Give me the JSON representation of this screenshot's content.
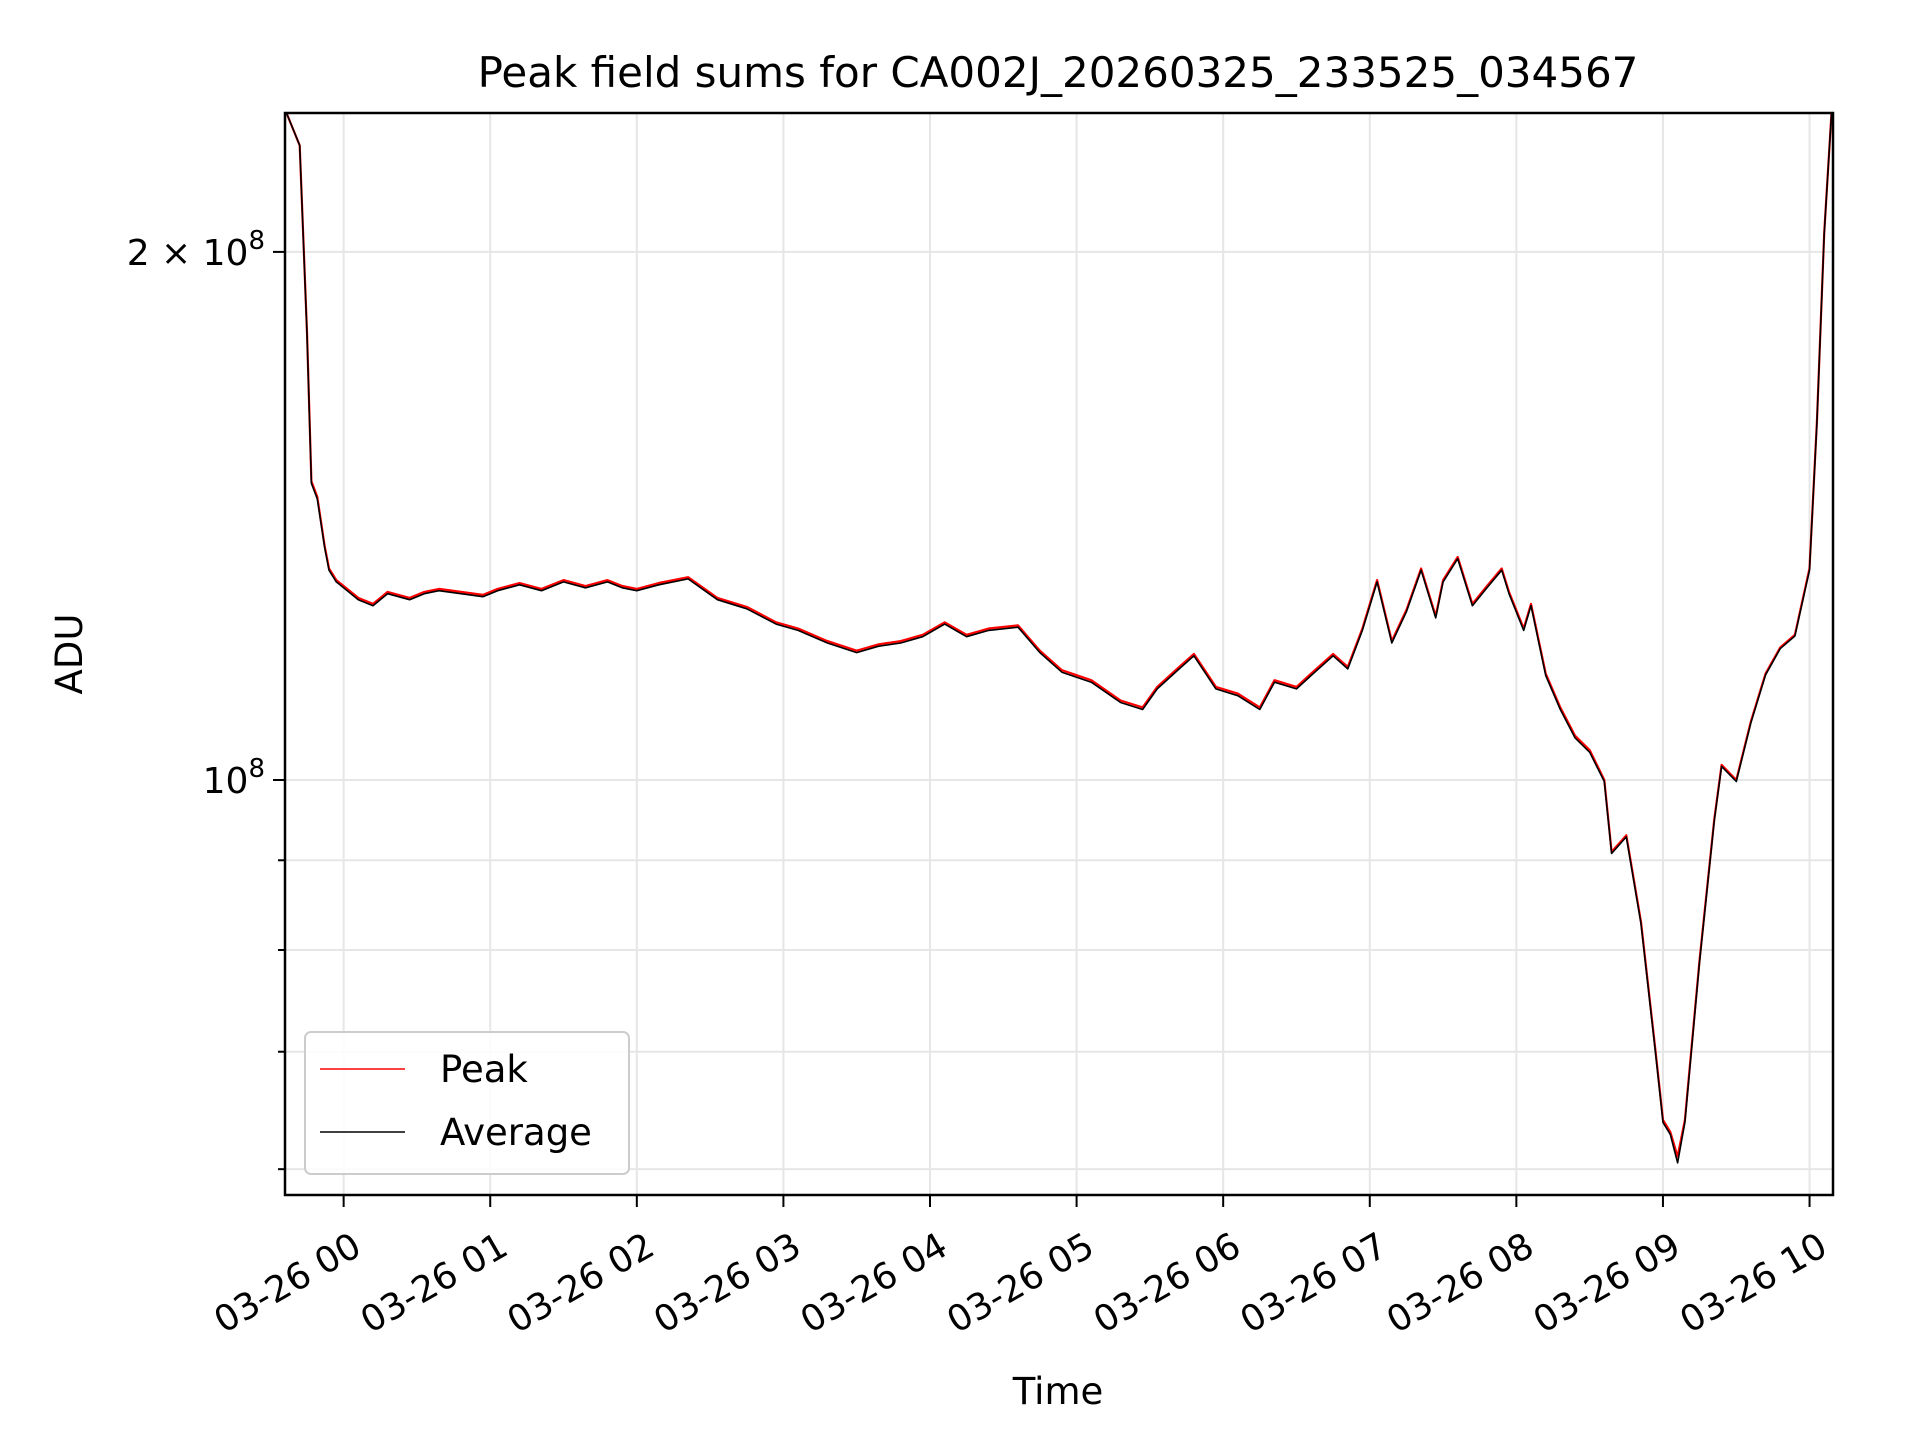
{
  "chart_data": {
    "type": "line",
    "title": "Peak field sums for CA002J_20260325_233525_034567",
    "xlabel": "Time",
    "ylabel": "ADU",
    "y_scale": "log",
    "grid": true,
    "legend_position": "lower-left",
    "x_tick_labels": [
      "03-26 00",
      "03-26 01",
      "03-26 02",
      "03-26 03",
      "03-26 04",
      "03-26 05",
      "03-26 06",
      "03-26 07",
      "03-26 08",
      "03-26 09",
      "03-26 10"
    ],
    "x_ticks_hours": [
      0,
      1,
      2,
      3,
      4,
      5,
      6,
      7,
      8,
      9,
      10
    ],
    "x_range_hours": [
      -0.4,
      10.16
    ],
    "y_range": [
      58000000,
      240000000
    ],
    "y_major_ticks": [
      {
        "value": 100000000,
        "mantissa": "",
        "base": "10",
        "exp": "8"
      },
      {
        "value": 200000000,
        "mantissa": "2 × ",
        "base": "10",
        "exp": "8"
      }
    ],
    "y_minor_ticks": [
      60000000,
      70000000,
      80000000,
      90000000
    ],
    "series": [
      {
        "name": "Peak",
        "color": "#ff0000",
        "x": [
          -0.39,
          -0.3,
          -0.25,
          -0.22,
          -0.18,
          -0.13,
          -0.1,
          -0.05,
          0.0,
          0.1,
          0.2,
          0.3,
          0.45,
          0.55,
          0.65,
          0.8,
          0.95,
          1.05,
          1.2,
          1.35,
          1.5,
          1.65,
          1.8,
          1.9,
          2.0,
          2.15,
          2.35,
          2.55,
          2.75,
          2.95,
          3.1,
          3.3,
          3.5,
          3.65,
          3.8,
          3.95,
          4.1,
          4.25,
          4.4,
          4.6,
          4.75,
          4.9,
          5.1,
          5.3,
          5.45,
          5.55,
          5.7,
          5.8,
          5.95,
          6.1,
          6.25,
          6.35,
          6.5,
          6.6,
          6.75,
          6.85,
          6.95,
          7.05,
          7.15,
          7.25,
          7.35,
          7.45,
          7.5,
          7.6,
          7.7,
          7.8,
          7.9,
          7.95,
          8.05,
          8.1,
          8.2,
          8.3,
          8.4,
          8.5,
          8.6,
          8.65,
          8.75,
          8.85,
          8.95,
          9.0,
          9.05,
          9.1,
          9.15,
          9.25,
          9.35,
          9.4,
          9.5,
          9.6,
          9.7,
          9.8,
          9.9,
          10.0,
          10.05,
          10.1,
          10.15
        ],
        "values": [
          240000000,
          230000000,
          180000000,
          148000000,
          145000000,
          136000000,
          132000000,
          130000000,
          129000000,
          127000000,
          126000000,
          128000000,
          127000000,
          128000000,
          128500000,
          128000000,
          127500000,
          128500000,
          129500000,
          128500000,
          130000000,
          129000000,
          130000000,
          129000000,
          128500000,
          129500000,
          130500000,
          127000000,
          125500000,
          123000000,
          122000000,
          120000000,
          118500000,
          119500000,
          120000000,
          121000000,
          123000000,
          121000000,
          122000000,
          122500000,
          118500000,
          115500000,
          114000000,
          111000000,
          110000000,
          113000000,
          116000000,
          118000000,
          113000000,
          112000000,
          110000000,
          114000000,
          113000000,
          115000000,
          118000000,
          116000000,
          122000000,
          130000000,
          120000000,
          125000000,
          132000000,
          124000000,
          130000000,
          134000000,
          126000000,
          129000000,
          132000000,
          128000000,
          122000000,
          126000000,
          115000000,
          110000000,
          106000000,
          104000000,
          100000000,
          91000000,
          93000000,
          83000000,
          70000000,
          64000000,
          63000000,
          61000000,
          64000000,
          79000000,
          95000000,
          102000000,
          100000000,
          108000000,
          115000000,
          119000000,
          121000000,
          132000000,
          160000000,
          205000000,
          240000000
        ]
      },
      {
        "name": "Average",
        "color": "#000000",
        "x": [
          -0.39,
          -0.3,
          -0.25,
          -0.22,
          -0.18,
          -0.13,
          -0.1,
          -0.05,
          0.0,
          0.1,
          0.2,
          0.3,
          0.45,
          0.55,
          0.65,
          0.8,
          0.95,
          1.05,
          1.2,
          1.35,
          1.5,
          1.65,
          1.8,
          1.9,
          2.0,
          2.15,
          2.35,
          2.55,
          2.75,
          2.95,
          3.1,
          3.3,
          3.5,
          3.65,
          3.8,
          3.95,
          4.1,
          4.25,
          4.4,
          4.6,
          4.75,
          4.9,
          5.1,
          5.3,
          5.45,
          5.55,
          5.7,
          5.8,
          5.95,
          6.1,
          6.25,
          6.35,
          6.5,
          6.6,
          6.75,
          6.85,
          6.95,
          7.05,
          7.15,
          7.25,
          7.35,
          7.45,
          7.5,
          7.6,
          7.7,
          7.8,
          7.9,
          7.95,
          8.05,
          8.1,
          8.2,
          8.3,
          8.4,
          8.5,
          8.6,
          8.65,
          8.75,
          8.85,
          8.95,
          9.0,
          9.05,
          9.1,
          9.15,
          9.25,
          9.35,
          9.4,
          9.5,
          9.6,
          9.7,
          9.8,
          9.9,
          10.0,
          10.05,
          10.1,
          10.15
        ],
        "values": [
          240000000,
          230000000,
          179500000,
          147600000,
          144600000,
          135700000,
          131700000,
          129700000,
          128700000,
          126700000,
          125700000,
          127700000,
          126700000,
          127700000,
          128200000,
          127700000,
          127200000,
          128200000,
          129200000,
          128200000,
          129700000,
          128700000,
          129700000,
          128700000,
          128200000,
          129200000,
          130200000,
          126700000,
          125200000,
          122700000,
          121700000,
          119700000,
          118200000,
          119200000,
          119700000,
          120700000,
          122700000,
          120700000,
          121700000,
          122200000,
          118200000,
          115200000,
          113700000,
          110700000,
          109700000,
          112700000,
          115700000,
          117700000,
          112700000,
          111700000,
          109700000,
          113700000,
          112700000,
          114700000,
          117700000,
          115700000,
          121700000,
          129700000,
          119700000,
          124700000,
          131700000,
          123700000,
          129700000,
          133700000,
          125700000,
          128700000,
          131700000,
          127700000,
          121700000,
          125700000,
          114700000,
          109700000,
          105700000,
          103700000,
          99800000,
          90800000,
          92800000,
          82800000,
          69800000,
          63800000,
          62800000,
          60500000,
          63800000,
          78800000,
          94800000,
          101800000,
          99800000,
          107800000,
          114800000,
          118800000,
          120800000,
          131700000,
          159700000,
          204700000,
          240000000
        ]
      }
    ]
  }
}
